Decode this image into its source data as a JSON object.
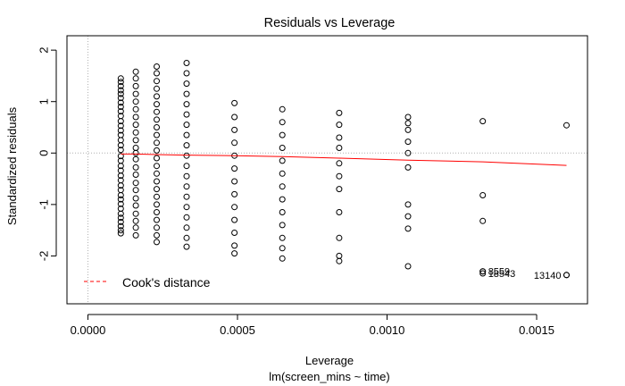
{
  "chart_data": {
    "type": "scatter",
    "title": "Residuals vs Leverage",
    "xlabel": "Leverage",
    "sublabel": "lm(screen_mins ~ time)",
    "ylabel": "Standardized residuals",
    "xlim": [
      -7e-05,
      0.00167
    ],
    "ylim": [
      -2.93,
      2.28
    ],
    "xticks": [
      0,
      0.0005,
      0.001,
      0.0015
    ],
    "xtick_labels": [
      "0.0000",
      "0.0005",
      "0.0010",
      "0.0015"
    ],
    "yticks": [
      -2,
      -1,
      0,
      1,
      2
    ],
    "ytick_labels": [
      "-2",
      "-1",
      "0",
      "1",
      "2"
    ],
    "legend": {
      "label": "Cook's distance",
      "position": "bottom-left",
      "color": "#ff0000"
    },
    "reference_lines": {
      "x": 0,
      "y": 0,
      "color": "#b0b0b0"
    },
    "smoother": {
      "color": "#ff0000",
      "x": [
        0.00011,
        0.00016,
        0.00023,
        0.00033,
        0.00049,
        0.00065,
        0.00084,
        0.00107,
        0.00132,
        0.0016
      ],
      "y": [
        -0.02,
        -0.02,
        -0.03,
        -0.04,
        -0.05,
        -0.07,
        -0.1,
        -0.14,
        -0.17,
        -0.24
      ]
    },
    "columns": [
      {
        "x": 0.00011,
        "y": [
          1.45,
          1.38,
          1.3,
          1.22,
          1.15,
          1.07,
          0.98,
          0.9,
          0.81,
          0.72,
          0.62,
          0.53,
          0.44,
          0.35,
          0.25,
          0.15,
          0.06,
          -0.06,
          -0.15,
          -0.25,
          -0.34,
          -0.44,
          -0.53,
          -0.63,
          -0.72,
          -0.82,
          -0.9,
          -0.99,
          -1.08,
          -1.18,
          -1.26,
          -1.34,
          -1.42,
          -1.5,
          -1.56
        ]
      },
      {
        "x": 0.00016,
        "y": [
          1.58,
          1.45,
          1.3,
          1.15,
          1.0,
          0.85,
          0.7,
          0.55,
          0.4,
          0.25,
          0.1,
          0.0,
          -0.12,
          -0.28,
          -0.42,
          -0.58,
          -0.72,
          -0.88,
          -1.02,
          -1.18,
          -1.32,
          -1.45,
          -1.6
        ]
      },
      {
        "x": 0.00023,
        "y": [
          1.68,
          1.55,
          1.4,
          1.25,
          1.1,
          0.95,
          0.8,
          0.65,
          0.5,
          0.35,
          0.2,
          0.05,
          -0.1,
          -0.25,
          -0.4,
          -0.55,
          -0.7,
          -0.85,
          -1.0,
          -1.15,
          -1.3,
          -1.45,
          -1.6,
          -1.73
        ]
      },
      {
        "x": 0.00033,
        "y": [
          1.75,
          1.55,
          1.35,
          1.15,
          0.95,
          0.75,
          0.55,
          0.35,
          0.15,
          -0.05,
          -0.25,
          -0.45,
          -0.65,
          -0.85,
          -1.05,
          -1.25,
          -1.45,
          -1.65,
          -1.82
        ]
      },
      {
        "x": 0.00049,
        "y": [
          0.97,
          0.7,
          0.45,
          0.2,
          -0.05,
          -0.3,
          -0.55,
          -0.8,
          -1.05,
          -1.3,
          -1.55,
          -1.8,
          -1.95
        ]
      },
      {
        "x": 0.00065,
        "y": [
          0.85,
          0.6,
          0.35,
          0.1,
          -0.15,
          -0.4,
          -0.65,
          -0.9,
          -1.15,
          -1.4,
          -1.65,
          -1.85,
          -2.05
        ]
      },
      {
        "x": 0.00084,
        "y": [
          0.78,
          0.55,
          0.3,
          0.1,
          -0.2,
          -0.45,
          -0.7,
          -1.15,
          -1.65,
          -2.0,
          -2.1
        ]
      },
      {
        "x": 0.00107,
        "y": [
          0.7,
          0.58,
          0.45,
          0.22,
          0.0,
          -0.28,
          -1.0,
          -1.23,
          -1.47,
          -2.2
        ]
      },
      {
        "x": 0.00132,
        "y": [
          0.62,
          -0.82,
          -1.32,
          -2.3
        ]
      },
      {
        "x": 0.0016,
        "y": [
          0.54,
          -2.37
        ]
      }
    ],
    "labeled_points": [
      {
        "x": 0.00132,
        "y": -2.3,
        "label": "8559"
      },
      {
        "x": 0.00132,
        "y": -2.34,
        "label": "18543"
      },
      {
        "x": 0.0016,
        "y": -2.37,
        "label": "13140"
      }
    ]
  }
}
